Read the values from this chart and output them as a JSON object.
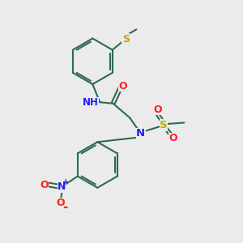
{
  "bg_color": "#ebebeb",
  "bond_color": "#2d6b4e",
  "n_color": "#2020ff",
  "o_color": "#ff2020",
  "s_color": "#bbaa00",
  "lw": 1.5,
  "figsize": [
    3.0,
    3.0
  ],
  "dpi": 100,
  "xlim": [
    0,
    10
  ],
  "ylim": [
    0,
    10
  ]
}
